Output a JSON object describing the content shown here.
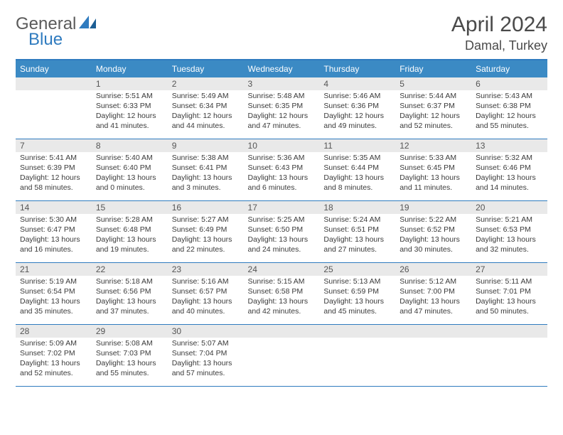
{
  "brand": {
    "name1": "General",
    "name2": "Blue"
  },
  "title": {
    "month": "April 2024",
    "location": "Damal, Turkey"
  },
  "colors": {
    "accent": "#3b8ac4",
    "rule": "#2f7bbf",
    "daybar": "#e9e9e9",
    "text": "#3a3a3a"
  },
  "day_headers": [
    "Sunday",
    "Monday",
    "Tuesday",
    "Wednesday",
    "Thursday",
    "Friday",
    "Saturday"
  ],
  "weeks": [
    [
      {
        "n": "",
        "sunrise": "",
        "sunset": "",
        "daylight": ""
      },
      {
        "n": "1",
        "sunrise": "Sunrise: 5:51 AM",
        "sunset": "Sunset: 6:33 PM",
        "daylight": "Daylight: 12 hours and 41 minutes."
      },
      {
        "n": "2",
        "sunrise": "Sunrise: 5:49 AM",
        "sunset": "Sunset: 6:34 PM",
        "daylight": "Daylight: 12 hours and 44 minutes."
      },
      {
        "n": "3",
        "sunrise": "Sunrise: 5:48 AM",
        "sunset": "Sunset: 6:35 PM",
        "daylight": "Daylight: 12 hours and 47 minutes."
      },
      {
        "n": "4",
        "sunrise": "Sunrise: 5:46 AM",
        "sunset": "Sunset: 6:36 PM",
        "daylight": "Daylight: 12 hours and 49 minutes."
      },
      {
        "n": "5",
        "sunrise": "Sunrise: 5:44 AM",
        "sunset": "Sunset: 6:37 PM",
        "daylight": "Daylight: 12 hours and 52 minutes."
      },
      {
        "n": "6",
        "sunrise": "Sunrise: 5:43 AM",
        "sunset": "Sunset: 6:38 PM",
        "daylight": "Daylight: 12 hours and 55 minutes."
      }
    ],
    [
      {
        "n": "7",
        "sunrise": "Sunrise: 5:41 AM",
        "sunset": "Sunset: 6:39 PM",
        "daylight": "Daylight: 12 hours and 58 minutes."
      },
      {
        "n": "8",
        "sunrise": "Sunrise: 5:40 AM",
        "sunset": "Sunset: 6:40 PM",
        "daylight": "Daylight: 13 hours and 0 minutes."
      },
      {
        "n": "9",
        "sunrise": "Sunrise: 5:38 AM",
        "sunset": "Sunset: 6:41 PM",
        "daylight": "Daylight: 13 hours and 3 minutes."
      },
      {
        "n": "10",
        "sunrise": "Sunrise: 5:36 AM",
        "sunset": "Sunset: 6:43 PM",
        "daylight": "Daylight: 13 hours and 6 minutes."
      },
      {
        "n": "11",
        "sunrise": "Sunrise: 5:35 AM",
        "sunset": "Sunset: 6:44 PM",
        "daylight": "Daylight: 13 hours and 8 minutes."
      },
      {
        "n": "12",
        "sunrise": "Sunrise: 5:33 AM",
        "sunset": "Sunset: 6:45 PM",
        "daylight": "Daylight: 13 hours and 11 minutes."
      },
      {
        "n": "13",
        "sunrise": "Sunrise: 5:32 AM",
        "sunset": "Sunset: 6:46 PM",
        "daylight": "Daylight: 13 hours and 14 minutes."
      }
    ],
    [
      {
        "n": "14",
        "sunrise": "Sunrise: 5:30 AM",
        "sunset": "Sunset: 6:47 PM",
        "daylight": "Daylight: 13 hours and 16 minutes."
      },
      {
        "n": "15",
        "sunrise": "Sunrise: 5:28 AM",
        "sunset": "Sunset: 6:48 PM",
        "daylight": "Daylight: 13 hours and 19 minutes."
      },
      {
        "n": "16",
        "sunrise": "Sunrise: 5:27 AM",
        "sunset": "Sunset: 6:49 PM",
        "daylight": "Daylight: 13 hours and 22 minutes."
      },
      {
        "n": "17",
        "sunrise": "Sunrise: 5:25 AM",
        "sunset": "Sunset: 6:50 PM",
        "daylight": "Daylight: 13 hours and 24 minutes."
      },
      {
        "n": "18",
        "sunrise": "Sunrise: 5:24 AM",
        "sunset": "Sunset: 6:51 PM",
        "daylight": "Daylight: 13 hours and 27 minutes."
      },
      {
        "n": "19",
        "sunrise": "Sunrise: 5:22 AM",
        "sunset": "Sunset: 6:52 PM",
        "daylight": "Daylight: 13 hours and 30 minutes."
      },
      {
        "n": "20",
        "sunrise": "Sunrise: 5:21 AM",
        "sunset": "Sunset: 6:53 PM",
        "daylight": "Daylight: 13 hours and 32 minutes."
      }
    ],
    [
      {
        "n": "21",
        "sunrise": "Sunrise: 5:19 AM",
        "sunset": "Sunset: 6:54 PM",
        "daylight": "Daylight: 13 hours and 35 minutes."
      },
      {
        "n": "22",
        "sunrise": "Sunrise: 5:18 AM",
        "sunset": "Sunset: 6:56 PM",
        "daylight": "Daylight: 13 hours and 37 minutes."
      },
      {
        "n": "23",
        "sunrise": "Sunrise: 5:16 AM",
        "sunset": "Sunset: 6:57 PM",
        "daylight": "Daylight: 13 hours and 40 minutes."
      },
      {
        "n": "24",
        "sunrise": "Sunrise: 5:15 AM",
        "sunset": "Sunset: 6:58 PM",
        "daylight": "Daylight: 13 hours and 42 minutes."
      },
      {
        "n": "25",
        "sunrise": "Sunrise: 5:13 AM",
        "sunset": "Sunset: 6:59 PM",
        "daylight": "Daylight: 13 hours and 45 minutes."
      },
      {
        "n": "26",
        "sunrise": "Sunrise: 5:12 AM",
        "sunset": "Sunset: 7:00 PM",
        "daylight": "Daylight: 13 hours and 47 minutes."
      },
      {
        "n": "27",
        "sunrise": "Sunrise: 5:11 AM",
        "sunset": "Sunset: 7:01 PM",
        "daylight": "Daylight: 13 hours and 50 minutes."
      }
    ],
    [
      {
        "n": "28",
        "sunrise": "Sunrise: 5:09 AM",
        "sunset": "Sunset: 7:02 PM",
        "daylight": "Daylight: 13 hours and 52 minutes."
      },
      {
        "n": "29",
        "sunrise": "Sunrise: 5:08 AM",
        "sunset": "Sunset: 7:03 PM",
        "daylight": "Daylight: 13 hours and 55 minutes."
      },
      {
        "n": "30",
        "sunrise": "Sunrise: 5:07 AM",
        "sunset": "Sunset: 7:04 PM",
        "daylight": "Daylight: 13 hours and 57 minutes."
      },
      {
        "n": "",
        "sunrise": "",
        "sunset": "",
        "daylight": ""
      },
      {
        "n": "",
        "sunrise": "",
        "sunset": "",
        "daylight": ""
      },
      {
        "n": "",
        "sunrise": "",
        "sunset": "",
        "daylight": ""
      },
      {
        "n": "",
        "sunrise": "",
        "sunset": "",
        "daylight": ""
      }
    ]
  ]
}
